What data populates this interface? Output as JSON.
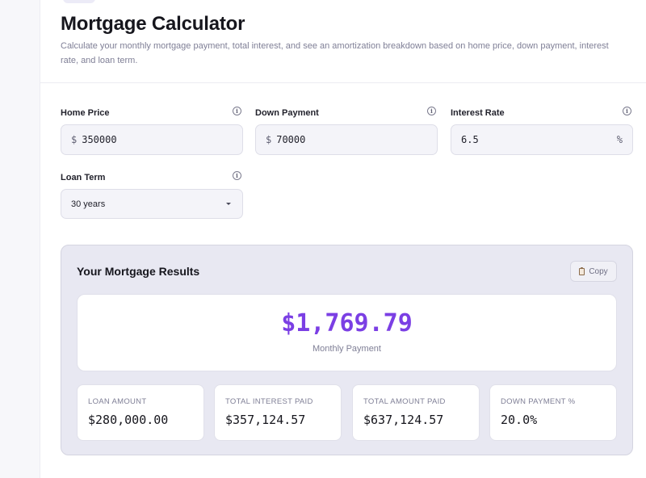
{
  "header": {
    "title": "Mortgage Calculator",
    "subtitle": "Calculate your monthly mortgage payment, total interest, and see an amortization breakdown based on home price, down payment, interest rate, and loan term."
  },
  "form": {
    "home_price": {
      "label": "Home Price",
      "prefix": "$",
      "value": "350000"
    },
    "down_payment": {
      "label": "Down Payment",
      "prefix": "$",
      "value": "70000"
    },
    "interest_rate": {
      "label": "Interest Rate",
      "value": "6.5",
      "suffix": "%"
    },
    "loan_term": {
      "label": "Loan Term",
      "value": "30 years"
    },
    "info_glyph": "i"
  },
  "results": {
    "title": "Your Mortgage Results",
    "copy_label": "Copy",
    "monthly_payment": "$1,769.79",
    "monthly_label": "Monthly Payment",
    "stats": [
      {
        "label": "Loan Amount",
        "value": "$280,000.00"
      },
      {
        "label": "Total Interest Paid",
        "value": "$357,124.57"
      },
      {
        "label": "Total Amount Paid",
        "value": "$637,124.57"
      },
      {
        "label": "Down Payment %",
        "value": "20.0%"
      }
    ]
  },
  "colors": {
    "accent": "#7b3fe4",
    "panel": "#e8e8f2",
    "input_bg": "#f4f4f9"
  },
  "icons": {
    "info": "info-icon",
    "copy": "clipboard-icon",
    "select": "chevron-down-icon"
  }
}
